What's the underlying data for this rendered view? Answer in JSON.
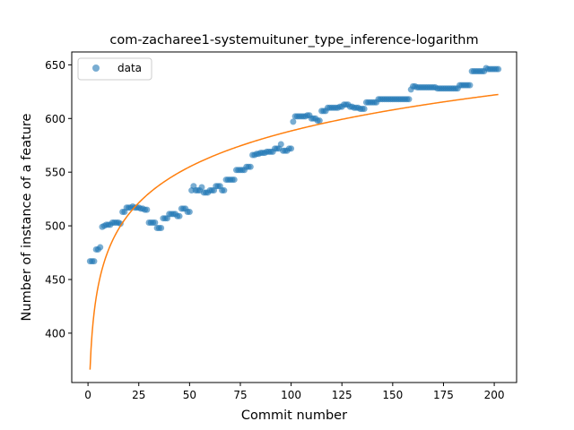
{
  "chart_data": {
    "type": "scatter",
    "title": "com-zacharee1-systemuituner_type_inference-logarithm",
    "xlabel": "Commit number",
    "ylabel": "Number of instance of a feature",
    "xlim": [
      -8,
      211
    ],
    "ylim": [
      354,
      662
    ],
    "xticks": [
      0,
      25,
      50,
      75,
      100,
      125,
      150,
      175,
      200
    ],
    "yticks": [
      400,
      450,
      500,
      550,
      600,
      650
    ],
    "legend": {
      "entries": [
        "data"
      ],
      "position": "top-left"
    },
    "grid": false,
    "series": [
      {
        "name": "data",
        "kind": "scatter",
        "color": "#1f77b4",
        "x": [
          1,
          2,
          3,
          4,
          5,
          6,
          7,
          8,
          9,
          10,
          11,
          12,
          13,
          14,
          15,
          16,
          17,
          18,
          19,
          20,
          21,
          22,
          23,
          24,
          25,
          26,
          27,
          28,
          29,
          30,
          31,
          32,
          33,
          34,
          35,
          36,
          37,
          38,
          39,
          40,
          41,
          42,
          43,
          44,
          45,
          46,
          47,
          48,
          49,
          50,
          51,
          52,
          53,
          54,
          55,
          56,
          57,
          58,
          59,
          60,
          61,
          62,
          63,
          64,
          65,
          66,
          67,
          68,
          69,
          70,
          71,
          72,
          73,
          74,
          75,
          76,
          77,
          78,
          79,
          80,
          81,
          82,
          83,
          84,
          85,
          86,
          87,
          88,
          89,
          90,
          91,
          92,
          93,
          94,
          95,
          96,
          97,
          98,
          99,
          100,
          101,
          102,
          103,
          104,
          105,
          106,
          107,
          108,
          109,
          110,
          111,
          112,
          113,
          114,
          115,
          116,
          117,
          118,
          119,
          120,
          121,
          122,
          123,
          124,
          125,
          126,
          127,
          128,
          129,
          130,
          131,
          132,
          133,
          134,
          135,
          136,
          137,
          138,
          139,
          140,
          141,
          142,
          143,
          144,
          145,
          146,
          147,
          148,
          149,
          150,
          151,
          152,
          153,
          154,
          155,
          156,
          157,
          158,
          159,
          160,
          161,
          162,
          163,
          164,
          165,
          166,
          167,
          168,
          169,
          170,
          171,
          172,
          173,
          174,
          175,
          176,
          177,
          178,
          179,
          180,
          181,
          182,
          183,
          184,
          185,
          186,
          187,
          188,
          189,
          190,
          191,
          192,
          193,
          194,
          195,
          196,
          197,
          198,
          199,
          200,
          201,
          202
        ],
        "y": [
          467,
          467,
          467,
          478,
          478,
          480,
          499,
          500,
          501,
          501,
          501,
          503,
          503,
          503,
          503,
          502,
          513,
          513,
          517,
          517,
          517,
          518,
          517,
          517,
          517,
          516,
          516,
          515,
          515,
          503,
          503,
          503,
          503,
          498,
          498,
          498,
          507,
          507,
          507,
          511,
          511,
          511,
          511,
          509,
          509,
          516,
          516,
          516,
          513,
          513,
          533,
          537,
          533,
          533,
          533,
          536,
          531,
          531,
          531,
          533,
          533,
          533,
          537,
          537,
          537,
          533,
          533,
          543,
          543,
          543,
          543,
          543,
          552,
          552,
          552,
          552,
          552,
          555,
          555,
          555,
          566,
          566,
          567,
          567,
          568,
          568,
          568,
          569,
          569,
          569,
          569,
          572,
          572,
          572,
          576,
          570,
          570,
          570,
          572,
          572,
          597,
          602,
          602,
          602,
          602,
          602,
          602,
          603,
          603,
          600,
          600,
          600,
          598,
          598,
          607,
          607,
          607,
          610,
          610,
          610,
          610,
          610,
          610,
          611,
          611,
          613,
          613,
          613,
          611,
          611,
          610,
          610,
          610,
          609,
          609,
          609,
          615,
          615,
          615,
          615,
          615,
          615,
          618,
          618,
          618,
          618,
          618,
          618,
          618,
          618,
          618,
          618,
          618,
          618,
          618,
          618,
          618,
          618,
          627,
          630,
          630,
          629,
          629,
          629,
          629,
          629,
          629,
          629,
          629,
          629,
          629,
          628,
          628,
          628,
          628,
          628,
          628,
          628,
          628,
          628,
          628,
          628,
          631,
          631,
          631,
          631,
          631,
          631,
          644,
          644,
          644,
          644,
          644,
          644,
          644,
          647,
          646,
          646,
          646,
          646,
          646,
          646
        ]
      },
      {
        "name": "",
        "kind": "line",
        "color": "#ff7f0e",
        "model": {
          "a": 366,
          "b": 48.3
        }
      }
    ]
  }
}
